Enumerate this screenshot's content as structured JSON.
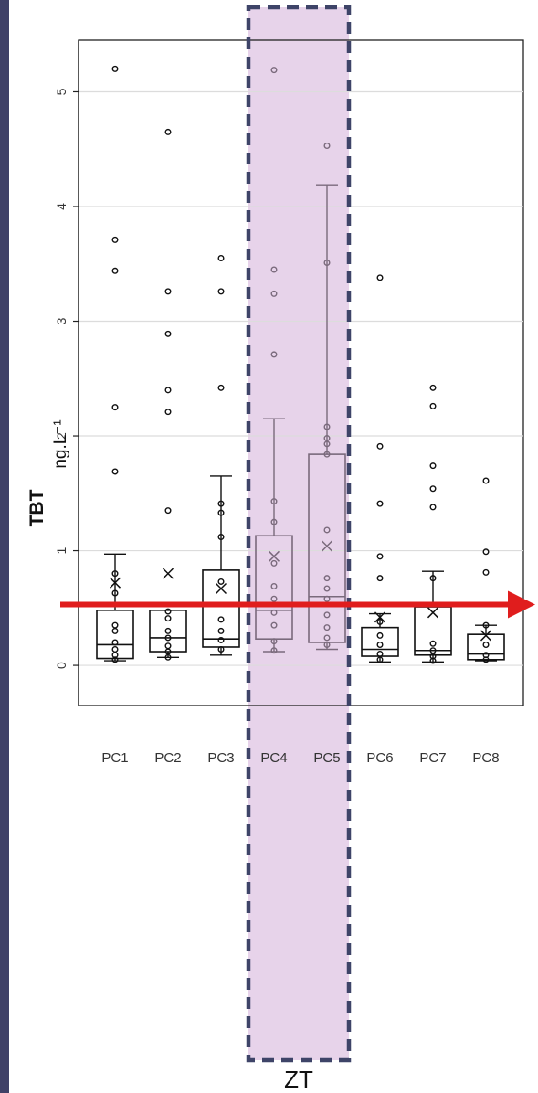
{
  "chart_data": {
    "type": "box",
    "title": "",
    "ylabel_main": "TBT",
    "ylabel_unit": "ng.L⁻¹",
    "ylim": [
      -0.35,
      5.45
    ],
    "yticks": [
      0,
      1,
      2,
      3,
      4,
      5
    ],
    "grid": true,
    "categories": [
      "PC1",
      "PC2",
      "PC3",
      "PC4",
      "PC5",
      "PC6",
      "PC7",
      "PC8"
    ],
    "boxes": [
      {
        "name": "PC1",
        "q1": 0.06,
        "median": 0.18,
        "q3": 0.48,
        "whisker_low": 0.04,
        "whisker_high": 0.97,
        "mean": 0.72,
        "points": [
          5.2,
          3.71,
          3.44,
          2.25,
          1.69,
          0.8,
          0.63,
          0.35,
          0.3,
          0.2,
          0.14,
          0.09,
          0.05
        ]
      },
      {
        "name": "PC2",
        "q1": 0.12,
        "median": 0.24,
        "q3": 0.48,
        "whisker_low": 0.07,
        "whisker_high": 0.48,
        "mean": 0.8,
        "points": [
          4.65,
          3.26,
          2.89,
          2.4,
          2.21,
          1.35,
          0.47,
          0.41,
          0.3,
          0.24,
          0.17,
          0.12,
          0.07
        ]
      },
      {
        "name": "PC3",
        "q1": 0.16,
        "median": 0.23,
        "q3": 0.83,
        "whisker_low": 0.09,
        "whisker_high": 1.65,
        "mean": 0.67,
        "points": [
          3.55,
          3.26,
          2.42,
          1.41,
          1.33,
          1.12,
          0.73,
          0.4,
          0.3,
          0.22,
          0.14
        ]
      },
      {
        "name": "PC4",
        "q1": 0.23,
        "median": 0.48,
        "q3": 1.13,
        "whisker_low": 0.12,
        "whisker_high": 2.15,
        "mean": 0.95,
        "points": [
          5.19,
          3.45,
          3.24,
          2.71,
          1.43,
          1.25,
          0.89,
          0.69,
          0.58,
          0.46,
          0.35,
          0.21,
          0.13
        ]
      },
      {
        "name": "PC5",
        "q1": 0.2,
        "median": 0.6,
        "q3": 1.84,
        "whisker_low": 0.14,
        "whisker_high": 4.19,
        "mean": 1.04,
        "points": [
          4.53,
          3.51,
          2.08,
          1.98,
          1.93,
          1.84,
          1.18,
          0.76,
          0.67,
          0.58,
          0.44,
          0.33,
          0.24,
          0.18
        ]
      },
      {
        "name": "PC6",
        "q1": 0.08,
        "median": 0.14,
        "q3": 0.33,
        "whisker_low": 0.03,
        "whisker_high": 0.45,
        "mean": 0.42,
        "points": [
          3.38,
          1.91,
          1.41,
          0.95,
          0.76,
          0.38,
          0.26,
          0.18,
          0.1,
          0.05
        ]
      },
      {
        "name": "PC7",
        "q1": 0.09,
        "median": 0.13,
        "q3": 0.51,
        "whisker_low": 0.03,
        "whisker_high": 0.82,
        "mean": 0.46,
        "points": [
          2.42,
          2.26,
          1.74,
          1.54,
          1.38,
          0.76,
          0.19,
          0.13,
          0.08,
          0.04
        ]
      },
      {
        "name": "PC8",
        "q1": 0.05,
        "median": 0.1,
        "q3": 0.27,
        "whisker_low": 0.04,
        "whisker_high": 0.35,
        "mean": 0.26,
        "points": [
          1.61,
          0.99,
          0.81,
          0.35,
          0.18,
          0.09,
          0.05
        ]
      }
    ],
    "highlight": {
      "categories": [
        "PC4",
        "PC5"
      ],
      "label": "ZT",
      "color": "#e7d3ea",
      "border": "#3e4468"
    },
    "threshold": {
      "value": 0.53,
      "color": "#e01d1d",
      "direction": "arrow-right"
    }
  }
}
